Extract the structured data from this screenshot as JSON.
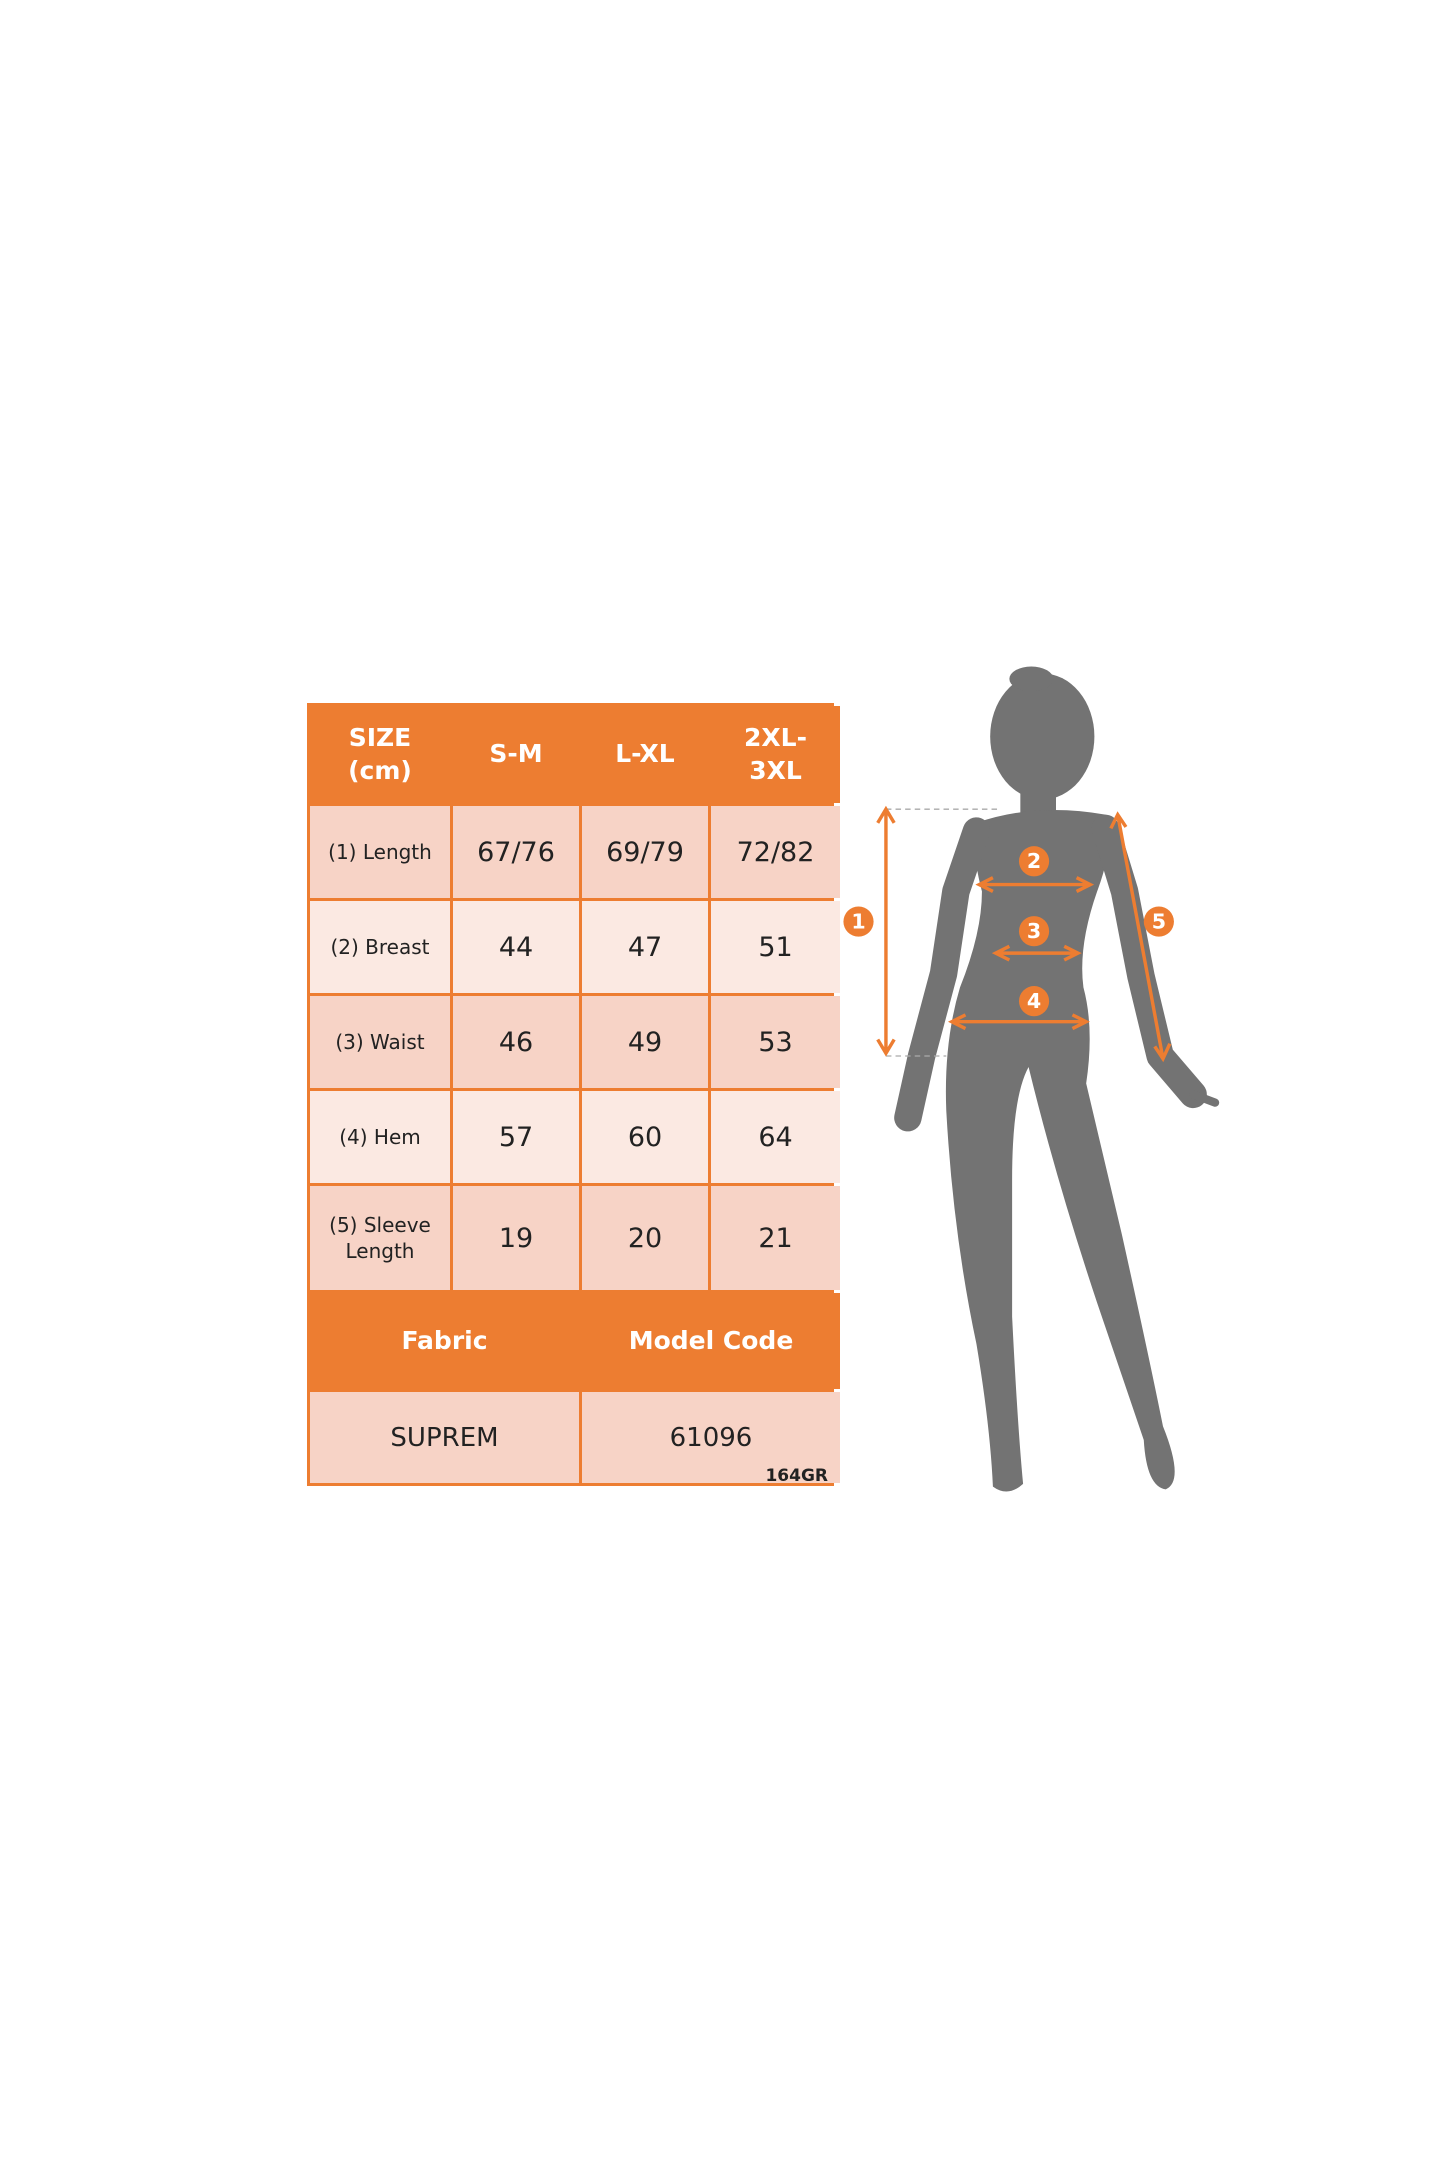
{
  "colors": {
    "accent": "#ED7D31",
    "cell_dark": "#F7D3C6",
    "cell_light": "#FBE9E2",
    "silhouette": "#737373"
  },
  "table": {
    "header": [
      "SIZE\n(cm)",
      "S-M",
      "L-XL",
      "2XL-\n3XL"
    ],
    "rows": [
      {
        "label": "(1) Length",
        "values": [
          "67/76",
          "69/79",
          "72/82"
        ]
      },
      {
        "label": "(2) Breast",
        "values": [
          "44",
          "47",
          "51"
        ]
      },
      {
        "label": "(3) Waist",
        "values": [
          "46",
          "49",
          "53"
        ]
      },
      {
        "label": "(4) Hem",
        "values": [
          "57",
          "60",
          "64"
        ]
      },
      {
        "label": "(5) Sleeve\nLength",
        "values": [
          "19",
          "20",
          "21"
        ]
      }
    ],
    "footer_headers": [
      "Fabric",
      "Model Code"
    ],
    "footer_values": [
      "SUPREM",
      "61096"
    ]
  },
  "code_label": "164GR",
  "figure": {
    "markers": [
      "1",
      "2",
      "3",
      "4",
      "5"
    ]
  }
}
